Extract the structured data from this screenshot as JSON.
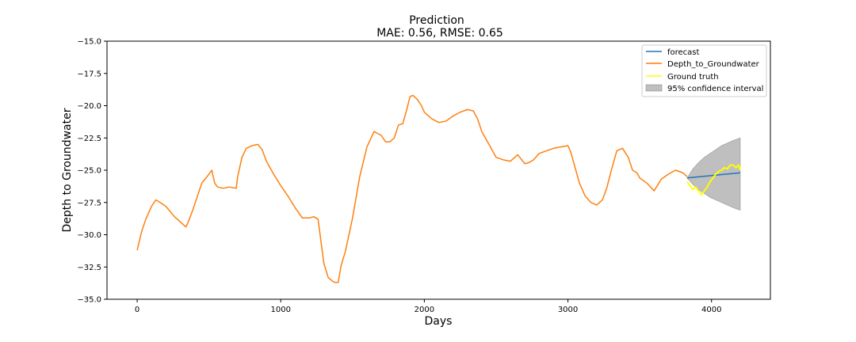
{
  "chart_data": {
    "type": "line",
    "title": "Prediction",
    "subtitle": "MAE: 0.56, RMSE: 0.65",
    "xlabel": "Days",
    "ylabel": "Depth to Groundwater",
    "xlim": [
      -210,
      4410
    ],
    "ylim": [
      -35.0,
      -15.0
    ],
    "x_ticks": [
      0,
      1000,
      2000,
      3000,
      4000
    ],
    "x_tick_labels": [
      "0",
      "1000",
      "2000",
      "3000",
      "4000"
    ],
    "y_ticks": [
      -35.0,
      -32.5,
      -30.0,
      -27.5,
      -25.0,
      -22.5,
      -20.0,
      -17.5,
      -15.0
    ],
    "y_tick_labels": [
      "−35.0",
      "−32.5",
      "−30.0",
      "−27.5",
      "−25.0",
      "−22.5",
      "−20.0",
      "−17.5",
      "−15.0"
    ],
    "grid": false,
    "legend_position": "top-right",
    "series": [
      {
        "name": "forecast",
        "color": "#1f77b4",
        "x": [
          3830,
          4200
        ],
        "y": [
          -25.6,
          -25.2
        ]
      },
      {
        "name": "Depth_to_Groundwater",
        "color": "#ff7f0e",
        "x": [
          0,
          30,
          60,
          100,
          130,
          160,
          200,
          230,
          260,
          300,
          340,
          360,
          390,
          420,
          450,
          480,
          520,
          540,
          560,
          600,
          640,
          690,
          700,
          730,
          760,
          800,
          840,
          870,
          900,
          950,
          1000,
          1050,
          1100,
          1150,
          1200,
          1230,
          1260,
          1280,
          1300,
          1330,
          1360,
          1380,
          1400,
          1420,
          1450,
          1500,
          1550,
          1600,
          1650,
          1700,
          1730,
          1760,
          1790,
          1820,
          1850,
          1880,
          1900,
          1920,
          1950,
          1980,
          2000,
          2050,
          2100,
          2150,
          2200,
          2250,
          2300,
          2340,
          2370,
          2400,
          2450,
          2500,
          2550,
          2600,
          2650,
          2700,
          2730,
          2760,
          2800,
          2850,
          2900,
          2950,
          3000,
          3020,
          3050,
          3080,
          3120,
          3160,
          3200,
          3240,
          3270,
          3300,
          3340,
          3380,
          3420,
          3450,
          3480,
          3500,
          3550,
          3600,
          3650,
          3700,
          3750,
          3800,
          3830
        ],
        "y": [
          -31.2,
          -29.8,
          -28.8,
          -27.8,
          -27.3,
          -27.5,
          -27.8,
          -28.2,
          -28.6,
          -29.0,
          -29.4,
          -28.9,
          -28.0,
          -27.0,
          -26.0,
          -25.6,
          -25.0,
          -26.0,
          -26.3,
          -26.4,
          -26.3,
          -26.4,
          -25.5,
          -24.0,
          -23.3,
          -23.1,
          -23.0,
          -23.4,
          -24.3,
          -25.3,
          -26.2,
          -27.0,
          -27.9,
          -28.7,
          -28.7,
          -28.6,
          -28.8,
          -30.5,
          -32.2,
          -33.3,
          -33.6,
          -33.7,
          -33.7,
          -32.4,
          -31.3,
          -28.7,
          -25.5,
          -23.2,
          -22.0,
          -22.3,
          -22.8,
          -22.8,
          -22.5,
          -21.5,
          -21.4,
          -20.2,
          -19.3,
          -19.2,
          -19.5,
          -20.0,
          -20.5,
          -21.0,
          -21.3,
          -21.2,
          -20.8,
          -20.5,
          -20.3,
          -20.4,
          -21.0,
          -22.0,
          -23.0,
          -24.0,
          -24.2,
          -24.3,
          -23.8,
          -24.5,
          -24.4,
          -24.2,
          -23.7,
          -23.5,
          -23.3,
          -23.2,
          -23.1,
          -23.6,
          -24.8,
          -26.0,
          -27.0,
          -27.5,
          -27.7,
          -27.3,
          -26.4,
          -25.1,
          -23.5,
          -23.3,
          -24.0,
          -25.0,
          -25.2,
          -25.6,
          -26.0,
          -26.6,
          -25.7,
          -25.3,
          -25.0,
          -25.2,
          -25.5
        ]
      },
      {
        "name": "Ground truth",
        "color": "#ffff00",
        "x": [
          3830,
          3850,
          3870,
          3890,
          3910,
          3930,
          3950,
          3970,
          3990,
          4010,
          4030,
          4050,
          4070,
          4090,
          4110,
          4130,
          4150,
          4170,
          4190,
          4200
        ],
        "y": [
          -25.9,
          -26.2,
          -26.5,
          -26.3,
          -26.6,
          -26.9,
          -26.6,
          -26.3,
          -25.9,
          -25.6,
          -25.3,
          -25.1,
          -25.0,
          -24.8,
          -24.9,
          -24.6,
          -24.6,
          -24.8,
          -24.6,
          -25.0
        ]
      }
    ],
    "confidence_interval": {
      "name": "95% confidence interval",
      "color": "#808080",
      "x": [
        3830,
        3870,
        3910,
        3950,
        3990,
        4030,
        4070,
        4110,
        4150,
        4200
      ],
      "lower": [
        -25.6,
        -26.1,
        -26.5,
        -26.8,
        -27.1,
        -27.3,
        -27.5,
        -27.7,
        -27.9,
        -28.1
      ],
      "upper": [
        -25.6,
        -24.9,
        -24.4,
        -24.0,
        -23.7,
        -23.4,
        -23.1,
        -22.9,
        -22.7,
        -22.5
      ]
    }
  }
}
